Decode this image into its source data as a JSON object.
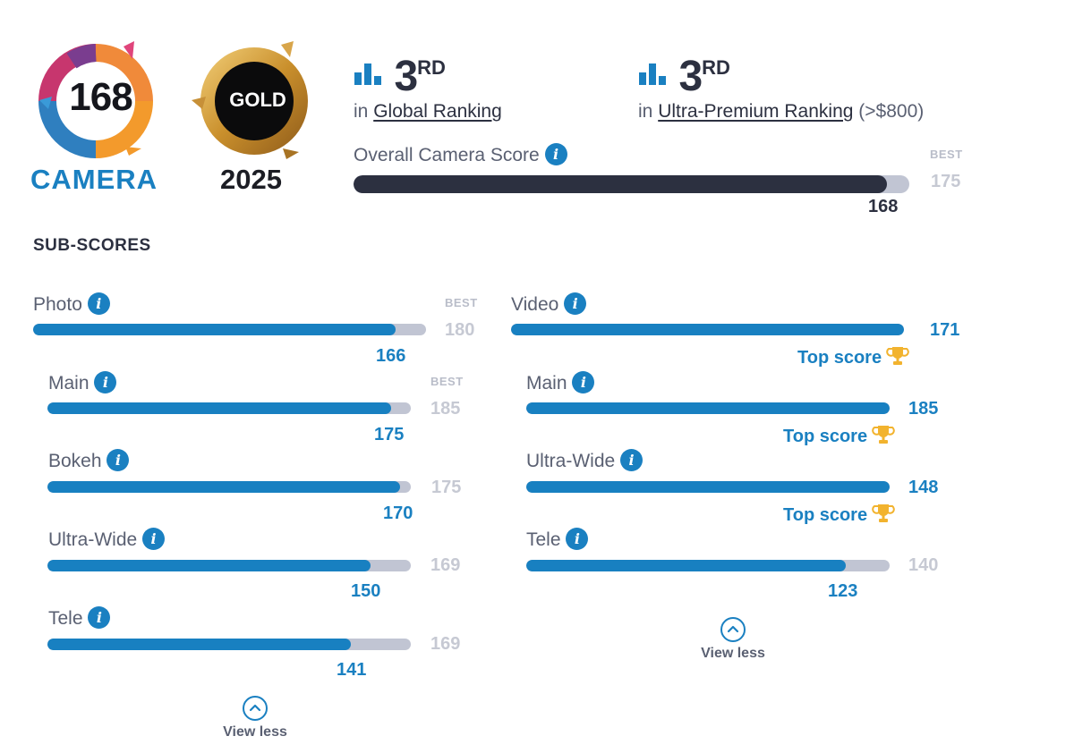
{
  "badges": {
    "camera": {
      "score": "168",
      "label": "CAMERA"
    },
    "gold": {
      "label": "GOLD",
      "year": "2025"
    }
  },
  "rankings": [
    {
      "position": "3",
      "suffix": "RD",
      "prefix": "in",
      "name": "Global Ranking",
      "qualifier": ""
    },
    {
      "position": "3",
      "suffix": "RD",
      "prefix": "in",
      "name": "Ultra-Premium Ranking",
      "qualifier": "(>$800)"
    }
  ],
  "overall": {
    "label": "Overall Camera Score",
    "best_label": "BEST",
    "best": "175",
    "score": "168",
    "fraction": 0.96
  },
  "subscores_title": "SUB-SCORES",
  "photo": {
    "label": "Photo",
    "best_label": "BEST",
    "best": "180",
    "score": "166",
    "fraction": 0.922,
    "items": [
      {
        "label": "Main",
        "best_label": "BEST",
        "best": "185",
        "score": "175",
        "fraction": 0.946
      },
      {
        "label": "Bokeh",
        "best": "175",
        "score": "170",
        "fraction": 0.971
      },
      {
        "label": "Ultra-Wide",
        "best": "169",
        "score": "150",
        "fraction": 0.888
      },
      {
        "label": "Tele",
        "best": "169",
        "score": "141",
        "fraction": 0.834
      }
    ],
    "view_less": "View less"
  },
  "video": {
    "label": "Video",
    "score": "171",
    "fraction": 1.0,
    "top_score": "Top score",
    "items": [
      {
        "label": "Main",
        "score": "185",
        "fraction": 1.0,
        "top_score": "Top score"
      },
      {
        "label": "Ultra-Wide",
        "score": "148",
        "fraction": 1.0,
        "top_score": "Top score"
      },
      {
        "label": "Tele",
        "best": "140",
        "score": "123",
        "fraction": 0.879
      }
    ],
    "view_less": "View less"
  },
  "colors": {
    "accent": "#1a80c1",
    "dark": "#2c3040",
    "track": "#c1c5d3",
    "gold": "#f2b32e"
  }
}
